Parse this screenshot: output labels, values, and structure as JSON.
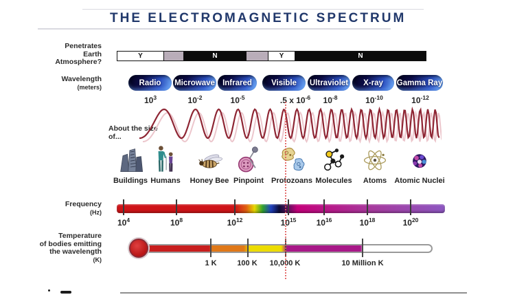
{
  "title": "THE ELECTROMAGNETIC SPECTRUM",
  "atmosphere": {
    "label_line1": "Penetrates",
    "label_line2": "Earth",
    "label_line3": "Atmosphere?",
    "segments": [
      {
        "label": "Y",
        "style": "yes"
      },
      {
        "label": "",
        "style": "partial"
      },
      {
        "label": "N",
        "style": "no"
      },
      {
        "label": "",
        "style": "partial"
      },
      {
        "label": "Y",
        "style": "yes"
      },
      {
        "label": "N",
        "style": "no"
      }
    ]
  },
  "wavelength": {
    "label": "Wavelength",
    "unit": "(meters)",
    "bands": [
      {
        "name": "Radio",
        "value_base": "10",
        "value_exp": "3"
      },
      {
        "name": "Microwave",
        "value_base": "10",
        "value_exp": "-2"
      },
      {
        "name": "Infrared",
        "value_base": "10",
        "value_exp": "-5"
      },
      {
        "name": "Visible",
        "value_base": ".5 x 10",
        "value_exp": "-6"
      },
      {
        "name": "Ultraviolet",
        "value_base": "10",
        "value_exp": "-8"
      },
      {
        "name": "X-ray",
        "value_base": "10",
        "value_exp": "-10"
      },
      {
        "name": "Gamma Ray",
        "value_base": "10",
        "value_exp": "-12"
      }
    ]
  },
  "size_scale": {
    "label": "About the size of...",
    "items": [
      "Buildings",
      "Humans",
      "Honey Bee",
      "Pinpoint",
      "Protozoans",
      "Molecules",
      "Atoms",
      "Atomic Nuclei"
    ]
  },
  "frequency": {
    "label": "Frequency",
    "unit": "(Hz)",
    "ticks": [
      {
        "base": "10",
        "exp": "4"
      },
      {
        "base": "10",
        "exp": "8"
      },
      {
        "base": "10",
        "exp": "12"
      },
      {
        "base": "10",
        "exp": "15"
      },
      {
        "base": "10",
        "exp": "16"
      },
      {
        "base": "10",
        "exp": "18"
      },
      {
        "base": "10",
        "exp": "20"
      }
    ]
  },
  "temperature": {
    "label_line1": "Temperature",
    "label_line2": "of bodies emitting",
    "label_line3": "the wavelength",
    "unit": "(K)",
    "ticks": [
      "1 K",
      "100 K",
      "10,000 K",
      "10 Million K"
    ]
  },
  "colors": {
    "title_navy": "#21386b",
    "pill_dark": "#03031f",
    "pill_blue": "#6aa4ee",
    "wave_red": "#8e2533",
    "frequency_red": "#cf1418",
    "frequency_magenta": "#c4007a",
    "frequency_purple": "#8d57c1",
    "thermo_red": "#c81e1e",
    "thermo_orange": "#e07818",
    "thermo_yellow": "#ecdc00",
    "thermo_magenta": "#a81888",
    "marker_red": "#e05555"
  }
}
